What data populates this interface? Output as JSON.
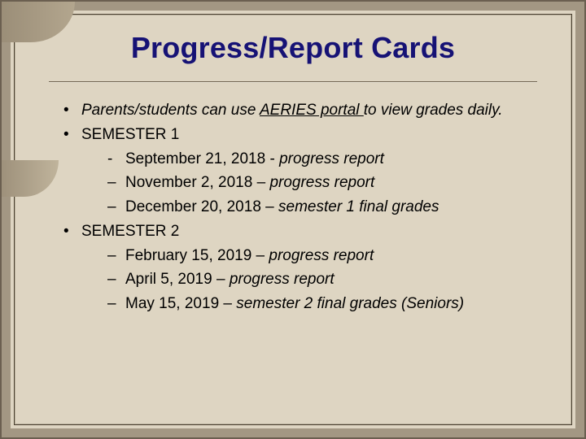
{
  "colors": {
    "background": "#ded5c2",
    "outer_frame": "#a39783",
    "inner_border": "#4a4030",
    "swoosh": "#9b8e78",
    "title_color": "#161275",
    "text_color": "#000000",
    "rule_color": "#6e624f"
  },
  "typography": {
    "title_fontsize": 36,
    "title_weight": "bold",
    "body_fontsize": 19,
    "line_height": 1.55,
    "font_family": "Arial"
  },
  "title": "Progress/Report Cards",
  "bullets": [
    {
      "fragments": [
        {
          "text": "Parents/students can use ",
          "italic": true
        },
        {
          "text": "AERIES portal ",
          "italic": true,
          "underline": true
        },
        {
          "text": "to view grades daily.",
          "italic": true
        }
      ]
    },
    {
      "text": "SEMESTER 1",
      "sub": [
        {
          "marker": "dash",
          "prefix": "September 21, 2018 - ",
          "italic_suffix": "progress report"
        },
        {
          "marker": "endash",
          "prefix": "November 2, 2018 – ",
          "italic_suffix": "progress report"
        },
        {
          "marker": "endash",
          "prefix": "December 20, 2018 – ",
          "italic_suffix": "semester 1 final grades"
        }
      ]
    },
    {
      "text": "SEMESTER 2",
      "sub": [
        {
          "marker": "endash",
          "prefix": "February 15, 2019 – ",
          "italic_suffix": "progress report"
        },
        {
          "marker": "endash",
          "prefix": "April 5, 2019 – ",
          "italic_suffix": "progress report"
        },
        {
          "marker": "endash",
          "prefix": "May 15, 2019 – ",
          "italic_suffix": "semester 2 final grades (Seniors)"
        }
      ]
    }
  ]
}
